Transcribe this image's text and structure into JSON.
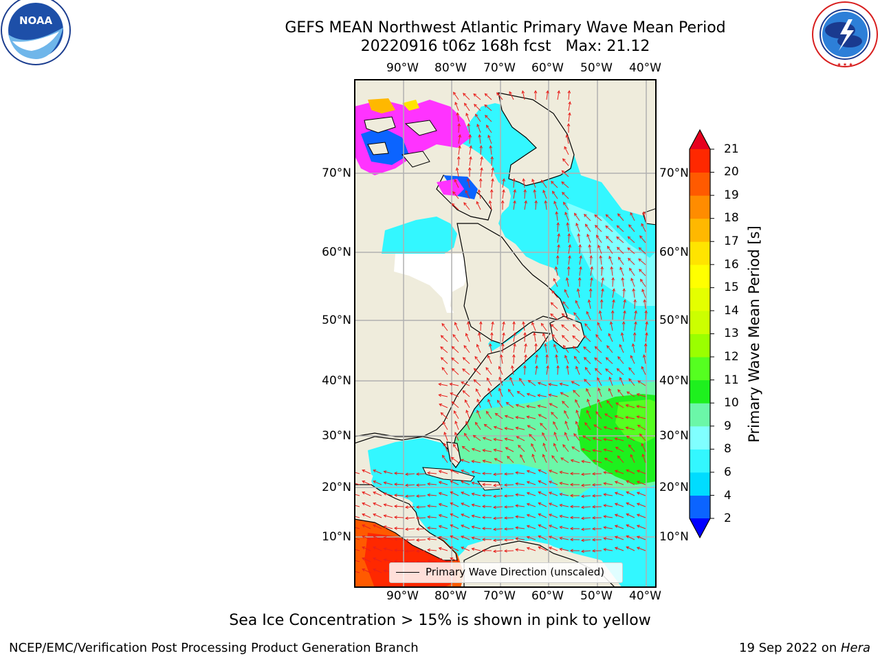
{
  "header": {
    "title_line1": "GEFS MEAN Northwest Atlantic Primary Wave Mean Period",
    "title_line2": "20220916 t06z 168h fcst   Max: 21.12"
  },
  "logos": {
    "left": {
      "name": "noaa-logo",
      "text": "NOAA",
      "ring_text": "NATIONAL OCEANIC AND ATMOSPHERIC ADMINISTRATION · U.S. DEPARTMENT OF COMMERCE"
    },
    "right": {
      "name": "nws-logo",
      "ring_text": "NATIONAL WEATHER SERVICE"
    }
  },
  "map": {
    "lon_labels": [
      "90°W",
      "80°W",
      "70°W",
      "60°W",
      "50°W",
      "40°W"
    ],
    "lat_labels": [
      "70°N",
      "60°N",
      "50°N",
      "40°N",
      "30°N",
      "20°N",
      "10°N"
    ],
    "legend_label": "Primary Wave Direction (unscaled)",
    "colors": {
      "land": "#efecdc",
      "ocean_default": "#33f7ff",
      "arrow": "#e8201c",
      "grid": "#b0b0b0"
    }
  },
  "colorbar": {
    "label": "Primary Wave Mean Period [s]",
    "ticks": [
      "2",
      "4",
      "6",
      "8",
      "9",
      "10",
      "11",
      "12",
      "13",
      "14",
      "15",
      "16",
      "17",
      "18",
      "19",
      "20",
      "21"
    ],
    "colors": [
      "#0b64ff",
      "#00dcff",
      "#33f7ff",
      "#80ffff",
      "#6bf7a8",
      "#1ef01e",
      "#55ff20",
      "#9aff00",
      "#ccff00",
      "#e4ff00",
      "#ffff00",
      "#ffe400",
      "#ffb800",
      "#ff8c00",
      "#ff5a00",
      "#ff2800"
    ],
    "under_color": "#0000ff",
    "over_color": "#e6001e"
  },
  "subcaption": "Sea Ice Concentration > 15% is shown in pink to yellow",
  "footer": {
    "left": "NCEP/EMC/Verification Post Processing Product Generation Branch",
    "date": "19 Sep 2022 on ",
    "machine": "Hera"
  }
}
